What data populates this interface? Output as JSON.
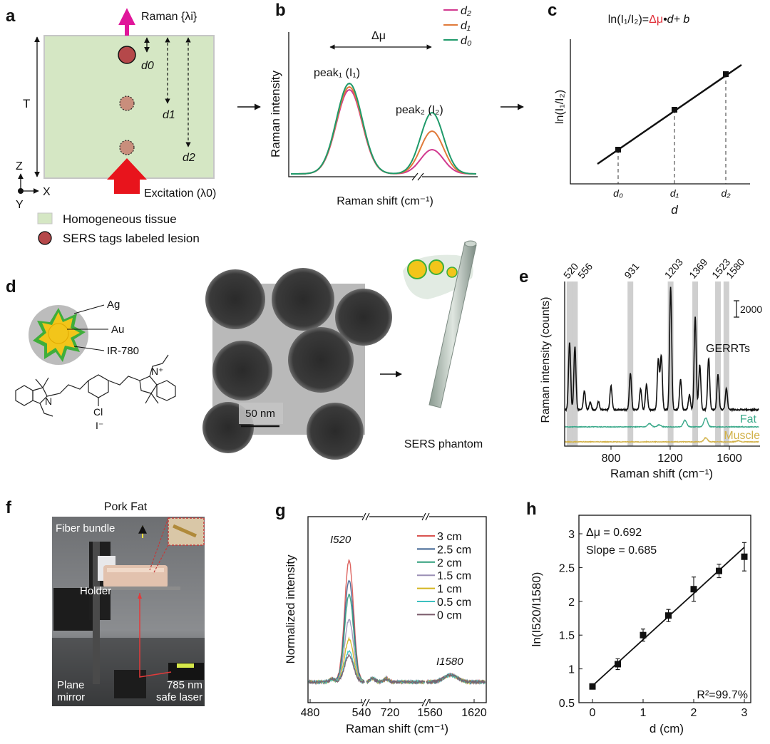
{
  "panels": {
    "a": {
      "label": "a",
      "raman_label": "Raman {λi}",
      "thickness_label": "T",
      "d0": "d0",
      "d1": "d1",
      "d2": "d2",
      "excitation_label": "Excitation (λ0)",
      "axis_z": "Z",
      "axis_x": "X",
      "axis_y": "Y",
      "legend": [
        "Homogeneous tissue",
        "SERS tags labeled lesion"
      ],
      "colors": {
        "tissue": "#d5e7c4",
        "lesion": "#b5484a",
        "raman_arrow": "#e0169a",
        "excitation_arrow": "#e8141c"
      }
    },
    "b": {
      "label": "b",
      "delta_mu": "Δμ",
      "peak1": "peak₁ (I₁)",
      "peak2": "peak₂ (I₂)",
      "ylabel": "Raman intensity",
      "xlabel": "Raman shift (cm⁻¹)",
      "legend": [
        {
          "name": "d₂",
          "color": "#d2398f"
        },
        {
          "name": "d₁",
          "color": "#e07a3a"
        },
        {
          "name": "d₀",
          "color": "#1f9a6a"
        }
      ]
    },
    "c": {
      "label": "c",
      "equation_left": "ln(I₁/I₂)=",
      "equation_mid": "Δμ",
      "equation_right": "•d+ b",
      "equation_accent": "#e0303a",
      "ylabel": "ln(I₁/I₂)",
      "xlabel": "d",
      "ticks": [
        "d₀",
        "d₁",
        "d₂"
      ]
    },
    "d": {
      "label": "d",
      "layers": [
        "Ag",
        "Au",
        "IR-780"
      ],
      "chem_labels": {
        "cl": "Cl",
        "iodide": "I⁻",
        "n_plus": "N⁺",
        "n": "N"
      },
      "scale_bar": "50 nm",
      "phantom_label": "SERS phantom"
    },
    "f": {
      "label": "f",
      "title": "Pork Fat",
      "annotations": [
        "Fiber bundle",
        "Holder",
        "Plane mirror",
        "785 nm safe laser"
      ]
    }
  },
  "chart_data": [
    {
      "panel": "e",
      "type": "line",
      "label": "e",
      "xlabel": "Raman shift (cm⁻¹)",
      "ylabel": "Raman intensity (counts)",
      "xlim": [
        487,
        1800
      ],
      "xticks": [
        800,
        1200,
        1600
      ],
      "highlight_bands": [
        520,
        556,
        931,
        1203,
        1369,
        1523,
        1580
      ],
      "scale_bar": {
        "label": "2000",
        "value": 2000
      },
      "series": [
        {
          "name": "GERRTs",
          "color": "#111111",
          "peaks": [
            [
              520,
              8300
            ],
            [
              556,
              7700
            ],
            [
              620,
              2300
            ],
            [
              660,
              900
            ],
            [
              715,
              1000
            ],
            [
              800,
              2900
            ],
            [
              931,
              4500
            ],
            [
              1000,
              2600
            ],
            [
              1040,
              3100
            ],
            [
              1120,
              6200
            ],
            [
              1140,
              6600
            ],
            [
              1203,
              15000
            ],
            [
              1270,
              3700
            ],
            [
              1330,
              1800
            ],
            [
              1369,
              11300
            ],
            [
              1400,
              5500
            ],
            [
              1460,
              6300
            ],
            [
              1523,
              4300
            ],
            [
              1580,
              2600
            ]
          ]
        },
        {
          "name": "Fat",
          "color": "#3aa98a",
          "peaks": [
            [
              1060,
              400
            ],
            [
              1125,
              250
            ],
            [
              1300,
              800
            ],
            [
              1440,
              1100
            ]
          ]
        },
        {
          "name": "Muscle",
          "color": "#d2b24a",
          "peaks": [
            [
              1440,
              500
            ],
            [
              1660,
              150
            ]
          ]
        }
      ]
    },
    {
      "panel": "g",
      "type": "line",
      "label": "g",
      "xlabel": "Raman shift (cm⁻¹)",
      "ylabel": "Normalized intensity",
      "broken_axis_segments": [
        [
          478,
          545
        ],
        [
          692,
          762
        ],
        [
          1554,
          1636
        ]
      ],
      "xticks": [
        "480",
        "540",
        "720",
        "1560",
        "1620"
      ],
      "peak_labels": [
        "I520",
        "I1580"
      ],
      "series": [
        {
          "name": "3 cm",
          "color": "#d9534f",
          "peak520": 17.0
        },
        {
          "name": "2.5 cm",
          "color": "#3a5f8f",
          "peak520": 14.3
        },
        {
          "name": "2 cm",
          "color": "#2e9e7a",
          "peak520": 12.2
        },
        {
          "name": "1.5 cm",
          "color": "#9a8fb5",
          "peak520": 8.8
        },
        {
          "name": "1 cm",
          "color": "#d4b51e",
          "peak520": 6.0
        },
        {
          "name": "0.5 cm",
          "color": "#3cc0c0",
          "peak520": 4.3
        },
        {
          "name": "0 cm",
          "color": "#7a5a6a",
          "peak520": 3.7
        }
      ],
      "peak1580": 1.0
    },
    {
      "panel": "h",
      "type": "scatter",
      "label": "h",
      "xlabel": "d (cm)",
      "ylabel": "ln(I520/I1580)",
      "xlim": [
        -0.25,
        3.25
      ],
      "ylim": [
        0.5,
        3.25
      ],
      "xticks": [
        0,
        1,
        2,
        3
      ],
      "yticks": [
        0.5,
        1,
        1.5,
        2,
        2.5,
        3
      ],
      "x": [
        0,
        0.5,
        1,
        1.5,
        2,
        2.5,
        3
      ],
      "y": [
        0.74,
        1.07,
        1.5,
        1.79,
        2.18,
        2.45,
        2.66
      ],
      "yerr": [
        0.02,
        0.08,
        0.09,
        0.09,
        0.18,
        0.1,
        0.21
      ],
      "fit": {
        "x": [
          0,
          3
        ],
        "y": [
          0.75,
          2.8
        ]
      },
      "annotations": [
        "Δμ = 0.692",
        "Slope = 0.685",
        "R²=99.7%"
      ]
    }
  ]
}
